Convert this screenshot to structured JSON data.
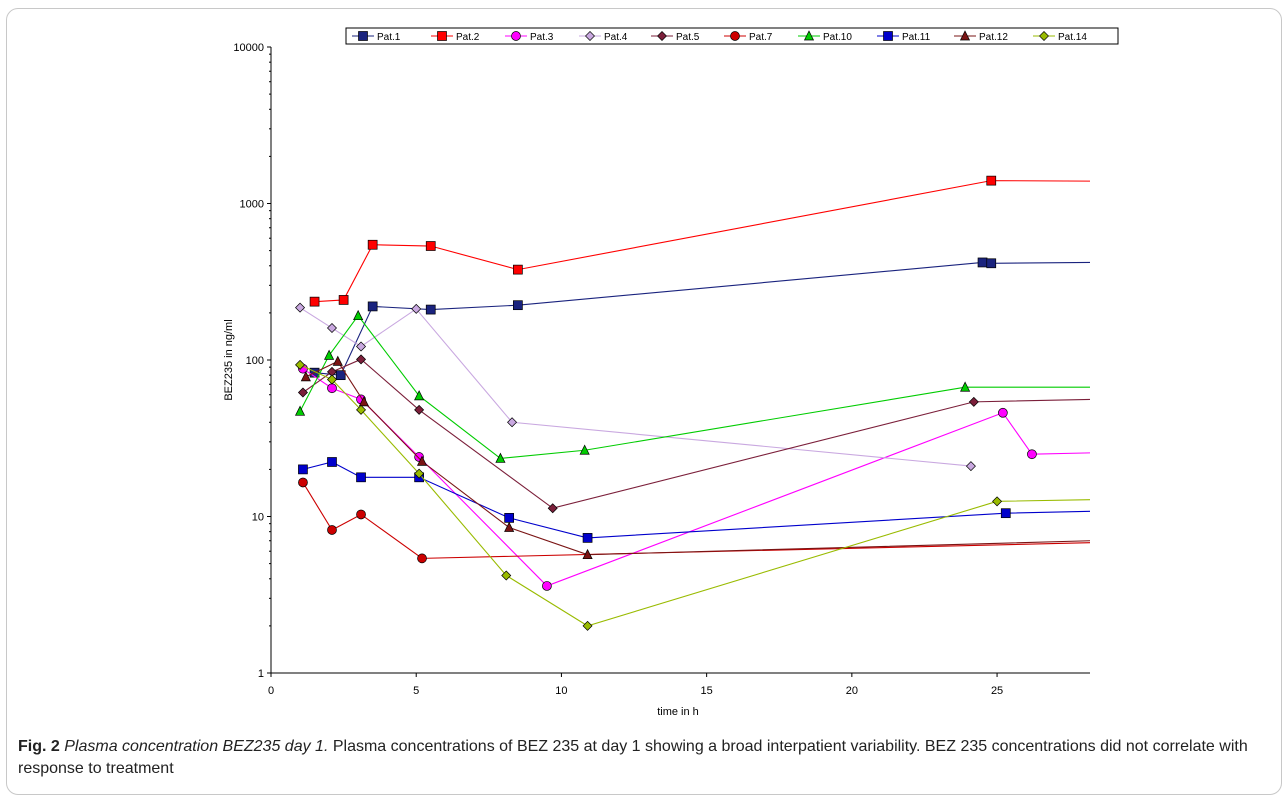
{
  "chart_data": {
    "type": "line",
    "xlabel": "time in h",
    "ylabel": "BEZ235 in ng/ml",
    "xlim": [
      0,
      28.2
    ],
    "ylim": [
      1,
      10000
    ],
    "yscale": "log",
    "xticks": [
      "0",
      "5",
      "10",
      "15",
      "20",
      "25"
    ],
    "yticks": [
      "1",
      "10",
      "100",
      "1000",
      "10000"
    ],
    "grid": false,
    "legend": "top",
    "series": [
      {
        "name": "Pat.1",
        "color": "#1a237e",
        "marker": "square",
        "x": [
          1.5,
          2.4,
          3.5,
          5.5,
          8.5,
          24.5,
          24.8,
          28.2
        ],
        "y": [
          83,
          80,
          220,
          210,
          224,
          420,
          415,
          420
        ]
      },
      {
        "name": "Pat.2",
        "color": "#ff0000",
        "marker": "square",
        "x": [
          1.5,
          2.5,
          3.5,
          5.5,
          8.5,
          24.8,
          28.2
        ],
        "y": [
          236,
          242,
          545,
          535,
          378,
          1400,
          1390
        ]
      },
      {
        "name": "Pat.3",
        "color": "#ff00ff",
        "marker": "circle",
        "x": [
          1.1,
          2.1,
          3.1,
          5.1,
          9.5,
          25.2,
          26.2,
          28.2
        ],
        "y": [
          88,
          66,
          56,
          24,
          3.6,
          46,
          25,
          25.5
        ]
      },
      {
        "name": "Pat.4",
        "color": "#c9a8e0",
        "marker": "diamond",
        "x": [
          1.0,
          2.1,
          3.1,
          5.0,
          8.3,
          24.1
        ],
        "y": [
          216,
          160,
          122,
          212,
          40,
          21
        ]
      },
      {
        "name": "Pat.5",
        "color": "#7b1f3a",
        "marker": "diamond",
        "x": [
          1.1,
          2.1,
          3.1,
          5.1,
          9.7,
          24.2,
          28.2
        ],
        "y": [
          62,
          84,
          101,
          48,
          11.3,
          54,
          56
        ]
      },
      {
        "name": "Pat.7",
        "color": "#cc0000",
        "marker": "circle",
        "x": [
          1.1,
          2.1,
          3.1,
          5.2,
          28.2
        ],
        "y": [
          16.5,
          8.2,
          10.3,
          5.4,
          6.8
        ]
      },
      {
        "name": "Pat.10",
        "color": "#00cc00",
        "marker": "triangle",
        "x": [
          1.0,
          2.0,
          3.0,
          5.1,
          7.9,
          10.8,
          23.9,
          28.2
        ],
        "y": [
          47,
          107,
          192,
          59,
          23.5,
          26.5,
          67,
          67
        ]
      },
      {
        "name": "Pat.11",
        "color": "#0000cc",
        "marker": "square",
        "x": [
          1.1,
          2.1,
          3.1,
          5.1,
          8.2,
          10.9,
          25.3,
          28.2
        ],
        "y": [
          20,
          22.3,
          17.8,
          17.8,
          9.8,
          7.3,
          10.5,
          10.8
        ]
      },
      {
        "name": "Pat.12",
        "color": "#7a1414",
        "marker": "triangle",
        "x": [
          1.2,
          2.3,
          3.2,
          5.2,
          8.2,
          10.9,
          28.2
        ],
        "y": [
          78,
          98,
          54,
          22.5,
          8.5,
          5.7,
          7.0
        ]
      },
      {
        "name": "Pat.14",
        "color": "#99bb00",
        "marker": "diamond",
        "x": [
          1.0,
          2.1,
          3.1,
          5.1,
          8.1,
          10.9,
          25.0,
          28.2
        ],
        "y": [
          93,
          75,
          48,
          18.8,
          4.2,
          2.0,
          12.5,
          12.8
        ]
      }
    ]
  },
  "caption": {
    "label": "Fig. 2",
    "title": "Plasma concentration BEZ235 day 1.",
    "text": "Plasma concentrations of BEZ 235 at day 1 showing a broad interpatient variability. BEZ 235 concentrations did not correlate with response to treatment"
  }
}
